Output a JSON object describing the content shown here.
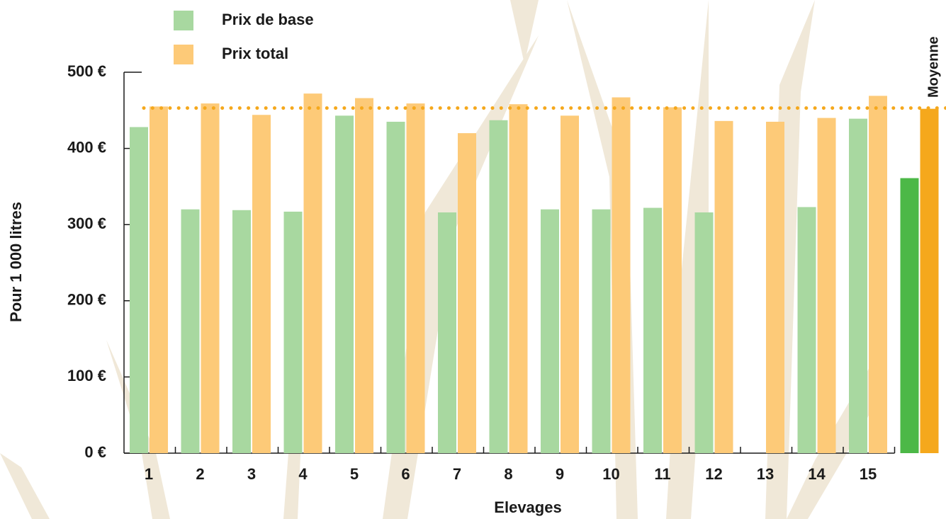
{
  "chart_data": {
    "type": "bar",
    "x_label": "Elevages",
    "y_label": "Pour 1 000 litres",
    "categories": [
      "1",
      "2",
      "3",
      "4",
      "5",
      "6",
      "7",
      "8",
      "9",
      "10",
      "11",
      "12",
      "13",
      "14",
      "15",
      null
    ],
    "series": [
      {
        "name": "Prix de base",
        "color": "#a8d8a0",
        "colors": [
          "#a8d8a0",
          "#a8d8a0",
          "#a8d8a0",
          "#a8d8a0",
          "#a8d8a0",
          "#a8d8a0",
          "#a8d8a0",
          "#a8d8a0",
          "#a8d8a0",
          "#a8d8a0",
          "#a8d8a0",
          "#a8d8a0",
          "#a8d8a0",
          "#a8d8a0",
          "#a8d8a0",
          "#4cb847"
        ],
        "values": [
          428,
          320,
          319,
          317,
          443,
          435,
          316,
          437,
          320,
          320,
          322,
          316,
          null,
          323,
          439,
          361
        ]
      },
      {
        "name": "Prix total",
        "color": "#fdca78",
        "colors": [
          "#fdca78",
          "#fdca78",
          "#fdca78",
          "#fdca78",
          "#fdca78",
          "#fdca78",
          "#fdca78",
          "#fdca78",
          "#fdca78",
          "#fdca78",
          "#fdca78",
          "#fdca78",
          "#fdca78",
          "#fdca78",
          "#fdca78",
          "#f5a81c"
        ],
        "values": [
          455,
          459,
          444,
          472,
          466,
          459,
          420,
          458,
          443,
          467,
          454,
          436,
          435,
          440,
          469,
          452
        ]
      }
    ],
    "reference_line": {
      "label": "Moyenne",
      "value": 453,
      "color": "#f5a81c",
      "label_color": "#4cb847"
    },
    "ylim": [
      0,
      500
    ],
    "yticks": [
      {
        "value": 0,
        "label": "0 €"
      },
      {
        "value": 100,
        "label": "100 €"
      },
      {
        "value": 200,
        "label": "200 €"
      },
      {
        "value": 300,
        "label": "300 €"
      },
      {
        "value": 400,
        "label": "400 €"
      },
      {
        "value": 500,
        "label": "500 €"
      }
    ]
  }
}
